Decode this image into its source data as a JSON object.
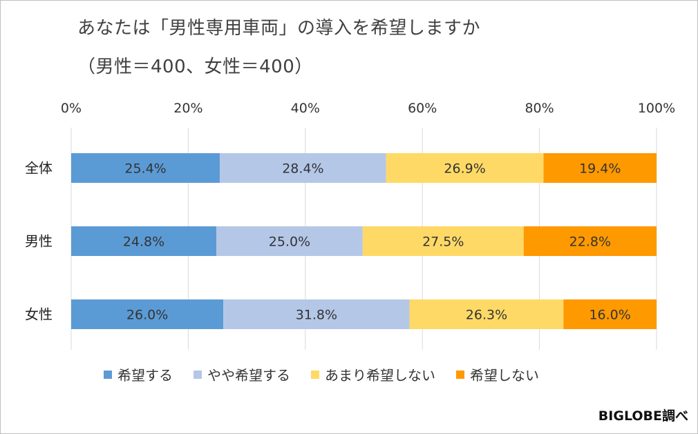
{
  "chart_data": {
    "type": "bar",
    "orientation": "horizontal",
    "stacked": "percent",
    "title": "あなたは「男性専用車両」の導入を希望しますか",
    "subtitle": "（男性＝400、女性＝400）",
    "categories": [
      "全体",
      "男性",
      "女性"
    ],
    "series": [
      {
        "name": "希望する",
        "color": "#5b9bd5",
        "values": [
          25.4,
          24.8,
          26.0
        ],
        "labels": [
          "25.4%",
          "24.8%",
          "26.0%"
        ]
      },
      {
        "name": "やや希望する",
        "color": "#b4c7e7",
        "values": [
          28.4,
          25.0,
          31.8
        ],
        "labels": [
          "28.4%",
          "25.0%",
          "31.8%"
        ]
      },
      {
        "name": "あまり希望しない",
        "color": "#ffd966",
        "values": [
          26.9,
          27.5,
          26.3
        ],
        "labels": [
          "26.9%",
          "27.5%",
          "26.3%"
        ]
      },
      {
        "name": "希望しない",
        "color": "#ff9900",
        "values": [
          19.4,
          22.8,
          16.0
        ],
        "labels": [
          "19.4%",
          "22.8%",
          "16.0%"
        ]
      }
    ],
    "xlim": [
      0,
      100
    ],
    "x_ticks": [
      0,
      20,
      40,
      60,
      80,
      100
    ],
    "x_tick_labels": [
      "0%",
      "20%",
      "40%",
      "60%",
      "80%",
      "100%"
    ],
    "x_axis_position": "top",
    "grid": "vertical",
    "legend_position": "bottom"
  },
  "credit": "BIGLOBE調べ"
}
